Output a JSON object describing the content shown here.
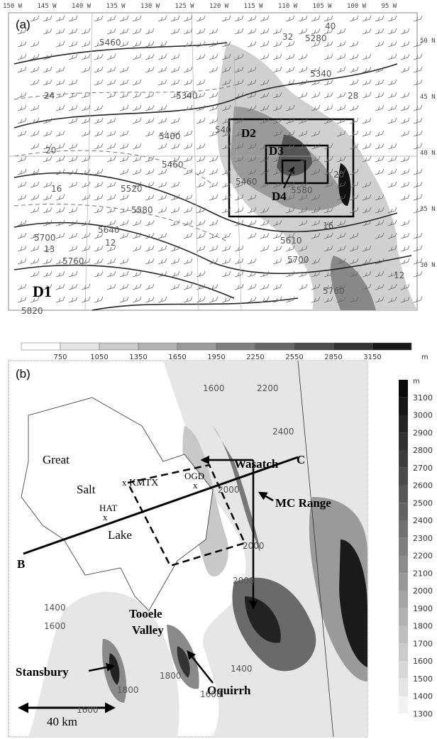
{
  "panel_a": {
    "label": "(a)",
    "lon_labels": [
      "150 W",
      "145 W",
      "140 W",
      "135 W",
      "130 W",
      "125 W",
      "120 W",
      "115 W",
      "110 W",
      "105 W",
      "100 W",
      "95 W"
    ],
    "lat_labels": [
      "50 N",
      "45 N",
      "40 N",
      "35 N",
      "30 N"
    ],
    "domains": [
      "D1",
      "D2",
      "D3",
      "D4"
    ],
    "contour_labels": [
      "5460",
      "32",
      "5280",
      "40",
      "5340",
      "5340",
      "24",
      "28",
      "5400",
      "540",
      "20",
      "5460",
      "16",
      "5520",
      "5580",
      "5640",
      "5700",
      "13",
      "12",
      "5760",
      "5820",
      "5460",
      "5580",
      "20",
      "16",
      "5610",
      "5700",
      "5760",
      "12"
    ],
    "colorbar_ticks": [
      "750",
      "1050",
      "1350",
      "1650",
      "1950",
      "2250",
      "2550",
      "2850",
      "3150"
    ],
    "colorbar_unit": "m"
  },
  "panel_b": {
    "label": "(b)",
    "place_labels": [
      "Great",
      "Salt",
      "Lake",
      "Wasatch",
      "MC Range",
      "Tooele",
      "Valley",
      "Stansbury",
      "Oquirrh"
    ],
    "stations": [
      "KMTX",
      "OGD",
      "HAT"
    ],
    "section_ends": [
      "B",
      "C"
    ],
    "contour_labels": [
      "1600",
      "2200",
      "2400",
      "2000",
      "2000",
      "2000",
      "1400",
      "1600",
      "1800",
      "1800",
      "1400",
      "1600",
      "1600"
    ],
    "scale": "40 km",
    "colorbar_unit": "m",
    "colorbar_ticks": [
      "3100",
      "3000",
      "2900",
      "2800",
      "2700",
      "2600",
      "2500",
      "2400",
      "2300",
      "2200",
      "2100",
      "2000",
      "1900",
      "1800",
      "1700",
      "1600",
      "1500",
      "1400",
      "1300"
    ]
  }
}
